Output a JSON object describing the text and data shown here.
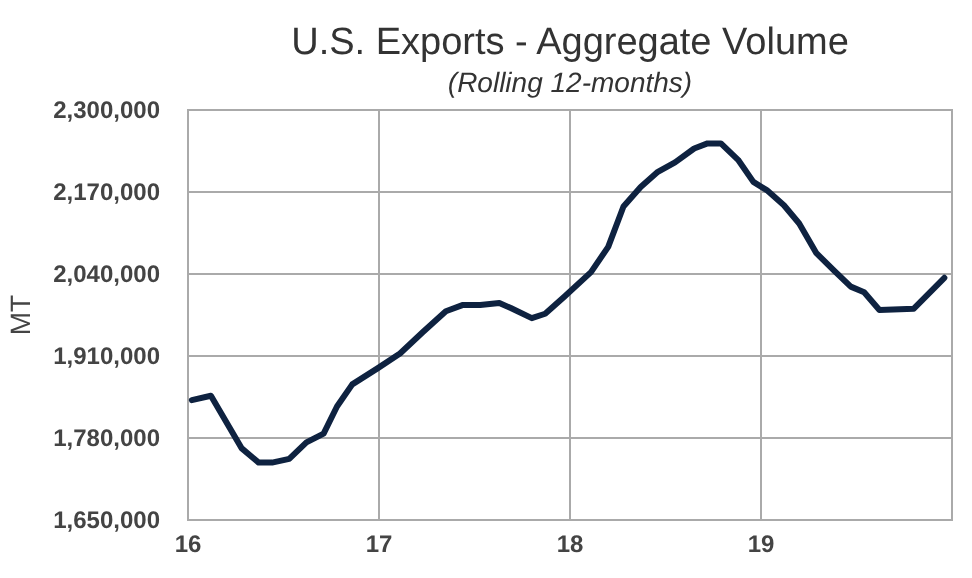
{
  "chart_data": {
    "type": "line",
    "title": "U.S. Exports - Aggregate Volume",
    "subtitle": "(Rolling 12-months)",
    "ylabel": "MT",
    "xlim": [
      16,
      20
    ],
    "xticks": [
      16,
      17,
      18,
      19
    ],
    "ylim": [
      1650000,
      2300000
    ],
    "yticks": [
      {
        "value": 1650000,
        "label": "1,650,000"
      },
      {
        "value": 1780000,
        "label": "1,780,000"
      },
      {
        "value": 1910000,
        "label": "1,910,000"
      },
      {
        "value": 2040000,
        "label": "2,040,000"
      },
      {
        "value": 2170000,
        "label": "2,170,000"
      },
      {
        "value": 2300000,
        "label": "2,300,000"
      }
    ],
    "grid": true,
    "marker": "none",
    "line_style": "solid",
    "series": [
      {
        "color": "#0e2240",
        "x": [
          16.02,
          16.12,
          16.28,
          16.37,
          16.44,
          16.53,
          16.62,
          16.71,
          16.78,
          16.86,
          16.99,
          17.11,
          17.23,
          17.35,
          17.44,
          17.53,
          17.63,
          17.69,
          17.8,
          17.87,
          17.97,
          18.11,
          18.2,
          18.28,
          18.37,
          18.46,
          18.55,
          18.65,
          18.72,
          18.79,
          18.88,
          18.96,
          19.03,
          19.12,
          19.2,
          19.29,
          19.38,
          19.47,
          19.54,
          19.62,
          19.8,
          19.96
        ],
        "values": [
          1840000,
          1847000,
          1764000,
          1741000,
          1741000,
          1747000,
          1773000,
          1787000,
          1830000,
          1865000,
          1890000,
          1914000,
          1948000,
          1981000,
          1991000,
          1991000,
          1994000,
          1986000,
          1970000,
          1977000,
          2004000,
          2043000,
          2083000,
          2147000,
          2178000,
          2202000,
          2217000,
          2239000,
          2247000,
          2247000,
          2221000,
          2186000,
          2173000,
          2149000,
          2120000,
          2073000,
          2046000,
          2020000,
          2011000,
          1983000,
          1985000,
          2034000
        ]
      }
    ]
  }
}
